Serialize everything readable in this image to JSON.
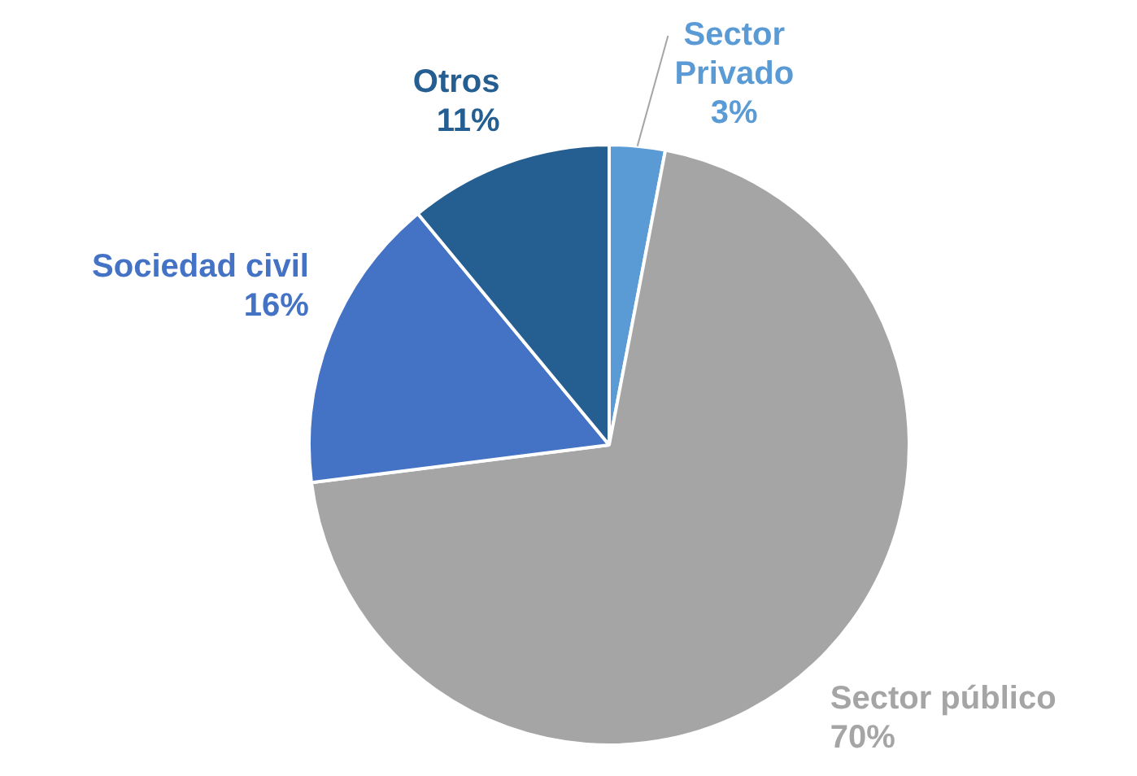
{
  "chart_data": {
    "type": "pie",
    "categories": [
      "Sector Privado",
      "Sector público",
      "Sociedad civil",
      "Otros"
    ],
    "values": [
      3,
      70,
      16,
      11
    ],
    "colors": [
      "#5b9bd5",
      "#a5a5a5",
      "#4472c4",
      "#255e91"
    ],
    "value_labels": [
      "3%",
      "70%",
      "16%",
      "11%"
    ],
    "legend": false
  }
}
